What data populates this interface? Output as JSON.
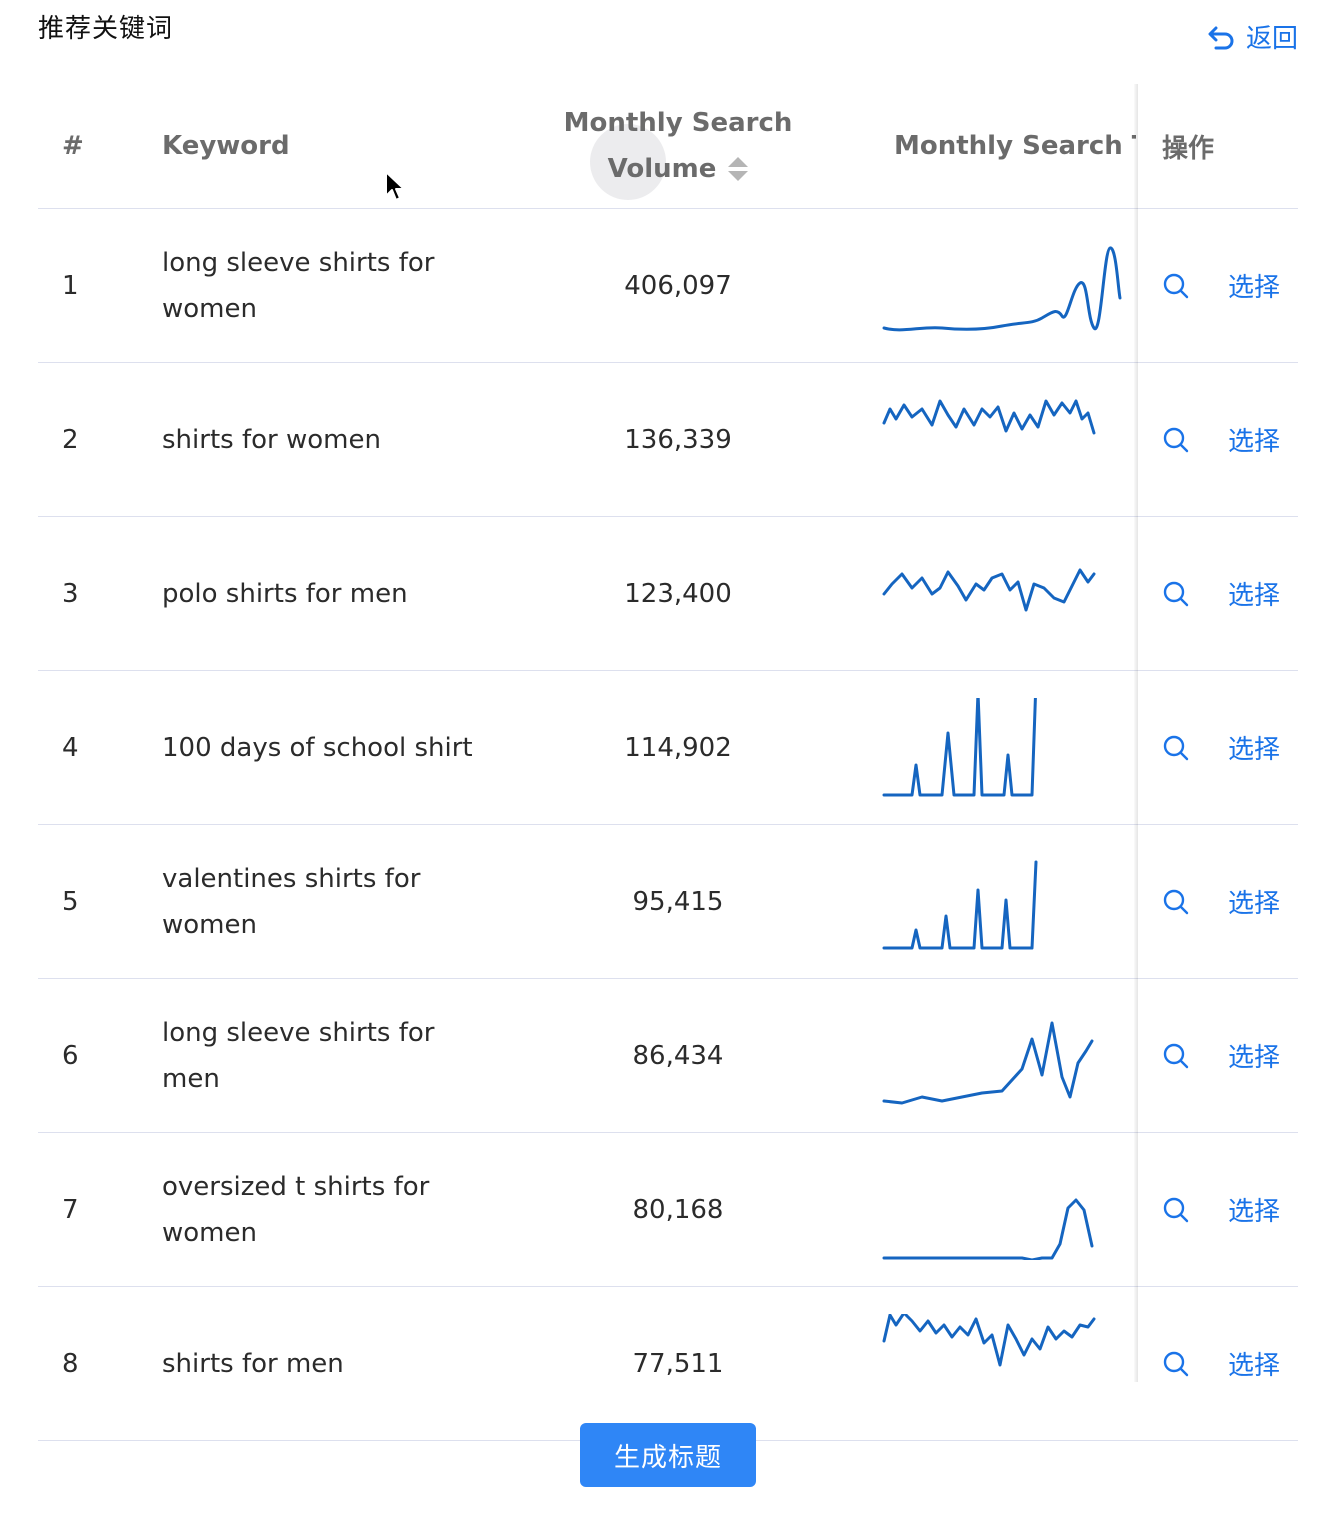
{
  "header": {
    "title": "推荐关键词",
    "back_label": "返回"
  },
  "table": {
    "columns": {
      "num": "#",
      "keyword": "Keyword",
      "volume_line1": "Monthly Search",
      "volume_line2": "Volume",
      "trend": "Monthly Search Trend",
      "ops": "操作"
    },
    "rows": [
      {
        "num": "1",
        "keyword": "long sleeve shirts for women",
        "volume": "406,097",
        "select": "选择"
      },
      {
        "num": "2",
        "keyword": "shirts for women",
        "volume": "136,339",
        "select": "选择"
      },
      {
        "num": "3",
        "keyword": "polo shirts for men",
        "volume": "123,400",
        "select": "选择"
      },
      {
        "num": "4",
        "keyword": "100 days of school shirt",
        "volume": "114,902",
        "select": "选择"
      },
      {
        "num": "5",
        "keyword": "valentines shirts for women",
        "volume": "95,415",
        "select": "选择"
      },
      {
        "num": "6",
        "keyword": "long sleeve shirts for men",
        "volume": "86,434",
        "select": "选择"
      },
      {
        "num": "7",
        "keyword": "oversized t shirts for women",
        "volume": "80,168",
        "select": "选择"
      },
      {
        "num": "8",
        "keyword": "shirts for men",
        "volume": "77,511",
        "select": "选择"
      }
    ]
  },
  "footer": {
    "generate_label": "生成标题"
  },
  "colors": {
    "accent": "#1a73e8",
    "sparkline": "#1565c0",
    "button": "#2f86f6"
  }
}
